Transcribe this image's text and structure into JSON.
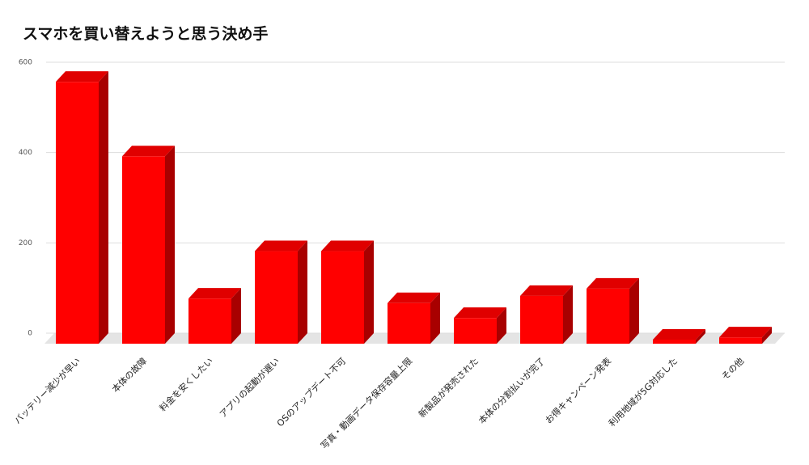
{
  "chart_data": {
    "type": "bar3d",
    "title": "スマホを買い替えようと思う決め手",
    "categories": [
      "バッテリー減少が早い",
      "本体の故障",
      "料金を安くしたい",
      "アプリの起動が遅い",
      "OSのアップデート不可",
      "写真・動画データ保存容量上限",
      "新製品が発売された",
      "本体の分割払いが完了",
      "お得キャンペーン発表",
      "利用地域が5G対応した",
      "その他"
    ],
    "values": [
      580,
      415,
      100,
      205,
      205,
      90,
      57,
      106,
      122,
      9,
      14
    ],
    "color": "#ff0000",
    "ylim": [
      0,
      600
    ],
    "yticks": [
      0,
      200,
      400,
      600
    ],
    "grid": true
  }
}
